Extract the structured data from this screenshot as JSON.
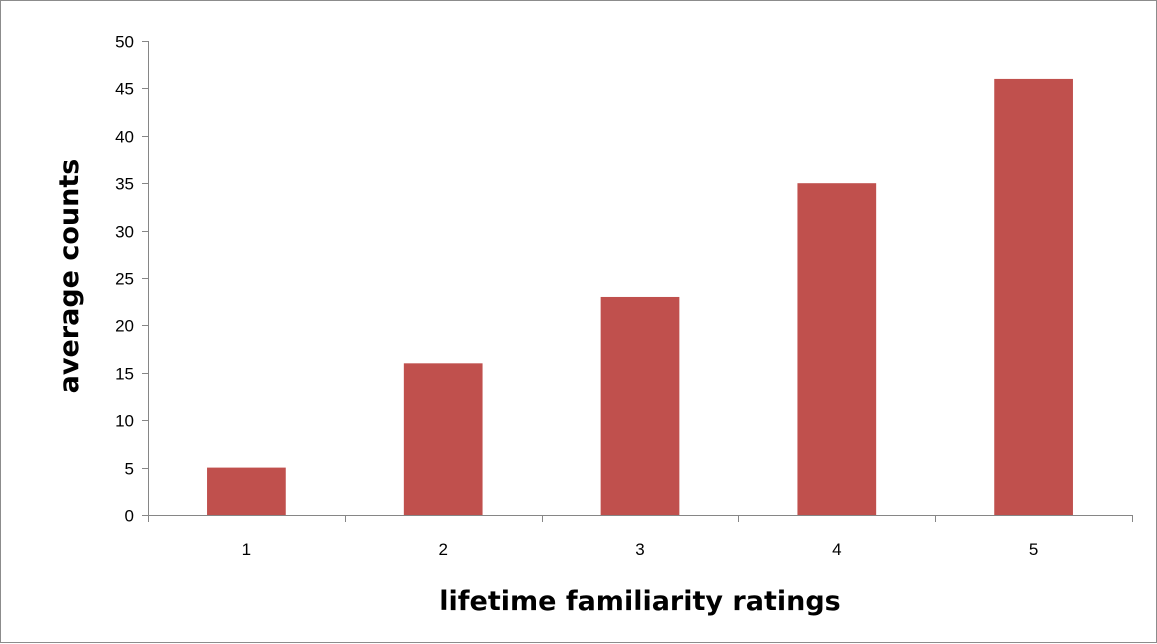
{
  "chart_data": {
    "type": "bar",
    "categories": [
      "1",
      "2",
      "3",
      "4",
      "5"
    ],
    "values": [
      5,
      16,
      23,
      35,
      46
    ],
    "title": "",
    "xlabel": "lifetime familiarity ratings",
    "ylabel": "average counts",
    "ylim": [
      0,
      50
    ],
    "yticks": [
      0,
      5,
      10,
      15,
      20,
      25,
      30,
      35,
      40,
      45,
      50
    ],
    "grid": false,
    "legend": "none",
    "bar_color": "#c0504d",
    "axis_color": "#868686"
  }
}
